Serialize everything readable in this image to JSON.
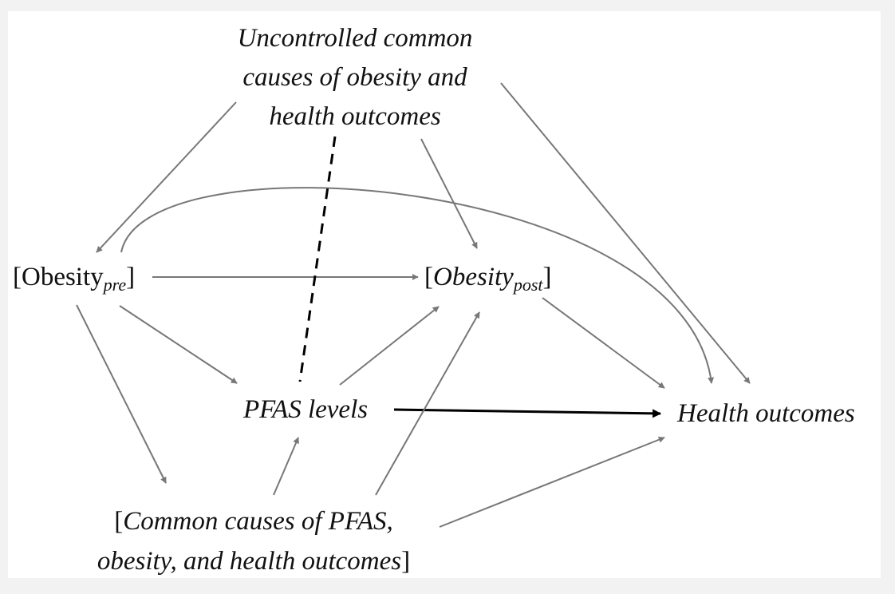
{
  "nodes": {
    "uncontrolled": {
      "lines": [
        "Uncontrolled common",
        "causes of obesity and",
        "health outcomes"
      ]
    },
    "obesity_pre": {
      "open": "[Obesity",
      "sub": "pre",
      "close": "]"
    },
    "obesity_post": {
      "open": "[",
      "main": "Obesity",
      "sub": "post",
      "close": "]"
    },
    "pfas": {
      "label": "PFAS levels"
    },
    "health": {
      "label": "Health outcomes"
    },
    "common_causes": {
      "line1_bracket": "[",
      "line1_text": "Common causes of PFAS,",
      "line2_text": "obesity, and health outcomes",
      "line2_bracket": "]"
    }
  },
  "edges": [
    {
      "from": "uncontrolled",
      "to": "obesity_pre",
      "style": "solid-gray"
    },
    {
      "from": "uncontrolled",
      "to": "obesity_post",
      "style": "solid-gray"
    },
    {
      "from": "uncontrolled",
      "to": "health",
      "style": "solid-gray"
    },
    {
      "from": "obesity_pre",
      "to": "health",
      "style": "curved-gray"
    },
    {
      "from": "obesity_pre",
      "to": "obesity_post",
      "style": "solid-gray"
    },
    {
      "from": "obesity_pre",
      "to": "pfas",
      "style": "solid-gray"
    },
    {
      "from": "obesity_pre",
      "to": "common_causes",
      "style": "solid-gray"
    },
    {
      "from": "pfas",
      "to": "obesity_post",
      "style": "solid-gray"
    },
    {
      "from": "pfas",
      "to": "health",
      "style": "solid-black"
    },
    {
      "from": "obesity_post",
      "to": "health",
      "style": "solid-gray"
    },
    {
      "from": "common_causes",
      "to": "pfas",
      "style": "solid-gray"
    },
    {
      "from": "common_causes",
      "to": "obesity_post",
      "style": "solid-gray"
    },
    {
      "from": "common_causes",
      "to": "health",
      "style": "solid-gray"
    },
    {
      "from": "uncontrolled",
      "to": "pfas",
      "style": "dashed-black"
    }
  ],
  "colors": {
    "gray_edge": "#777777",
    "black_edge": "#000000",
    "background": "#f2f2f2",
    "panel": "#ffffff"
  }
}
